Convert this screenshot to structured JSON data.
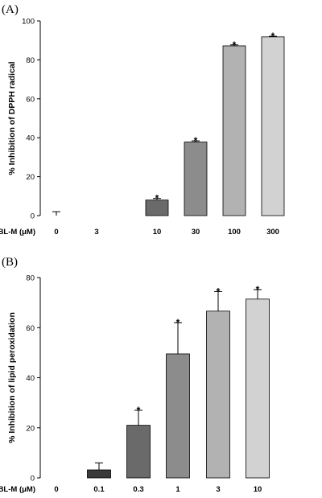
{
  "chart_data": [
    {
      "type": "bar",
      "panel_label": "(A)",
      "ylabel": "% Inhibition of DPPH radical",
      "x_prefix": "BL-M (μM)",
      "categories": [
        "0",
        "3",
        "10",
        "30",
        "100",
        "300"
      ],
      "values": [
        0,
        0,
        8,
        37.8,
        87.2,
        91.8
      ],
      "errors": [
        2,
        0,
        0.8,
        0.6,
        0.5,
        0.3
      ],
      "significant": [
        false,
        false,
        true,
        true,
        true,
        true
      ],
      "significance_mark": "*",
      "bar_colors": [
        "#555555",
        "#555555",
        "#6a6a6a",
        "#8c8c8c",
        "#b2b2b2",
        "#d2d2d2"
      ],
      "ylim": [
        0,
        100
      ],
      "yticks": [
        0,
        20,
        40,
        60,
        80,
        100
      ],
      "grid": false,
      "legend": "none"
    },
    {
      "type": "bar",
      "panel_label": "(B)",
      "ylabel": "% Inhibition of lipid peroxidation",
      "x_prefix": "BL-M (μM)",
      "categories": [
        "0",
        "0.1",
        "0.3",
        "1",
        "3",
        "10"
      ],
      "values": [
        0,
        3.2,
        21,
        49.5,
        66.6,
        71.4
      ],
      "errors": [
        0,
        2.8,
        6,
        12.5,
        7.8,
        3.8
      ],
      "significant": [
        false,
        false,
        true,
        true,
        true,
        true
      ],
      "significance_mark": "*",
      "bar_colors": [
        "#3a3a3a",
        "#3a3a3a",
        "#6a6a6a",
        "#8c8c8c",
        "#b2b2b2",
        "#d2d2d2"
      ],
      "ylim": [
        0,
        80
      ],
      "yticks": [
        0,
        20,
        40,
        60,
        80
      ],
      "grid": false,
      "legend": "none"
    }
  ]
}
